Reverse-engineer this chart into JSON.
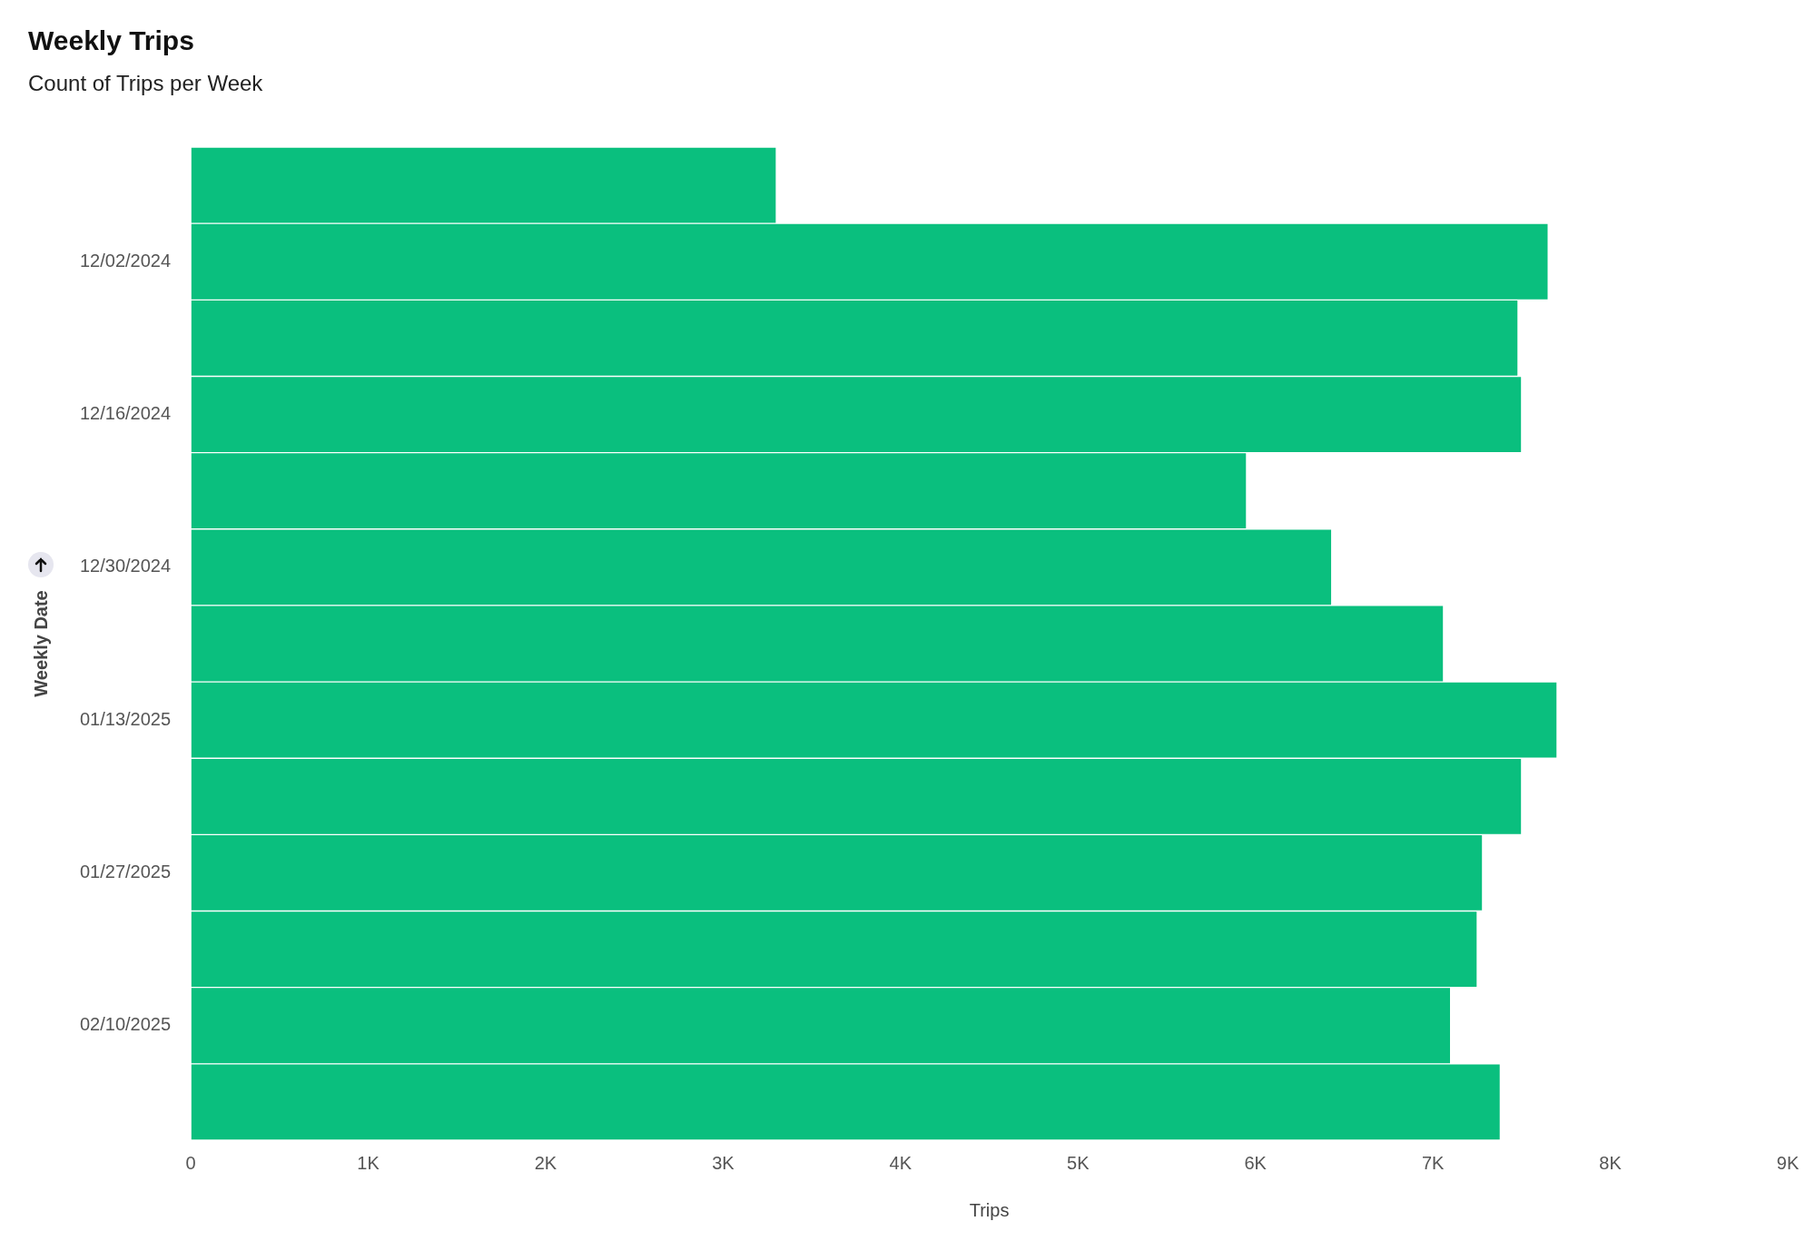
{
  "chart_data": {
    "type": "bar",
    "orientation": "horizontal",
    "title": "Weekly Trips",
    "subtitle": "Count of Trips per Week",
    "xlabel": "Trips",
    "ylabel": "Weekly Date",
    "categories": [
      null,
      "12/02/2024",
      null,
      "12/16/2024",
      null,
      "12/30/2024",
      null,
      "01/13/2025",
      null,
      "01/27/2025",
      null,
      "02/10/2025",
      null
    ],
    "values": [
      3300,
      7650,
      7480,
      7500,
      5950,
      6430,
      7060,
      7700,
      7500,
      7280,
      7250,
      7100,
      7380
    ],
    "color": "#0abf7e",
    "xlim": [
      0,
      9000
    ],
    "xticks": [
      0,
      {
        "value": 1000,
        "label": "1K"
      },
      {
        "value": 2000,
        "label": "2K"
      },
      {
        "value": 3000,
        "label": "3K"
      },
      {
        "value": 4000,
        "label": "4K"
      },
      {
        "value": 5000,
        "label": "5K"
      },
      {
        "value": 6000,
        "label": "6K"
      },
      {
        "value": 7000,
        "label": "7K"
      },
      {
        "value": 8000,
        "label": "8K"
      },
      {
        "value": 9000,
        "label": "9K"
      }
    ],
    "grid": false,
    "legend": false
  }
}
